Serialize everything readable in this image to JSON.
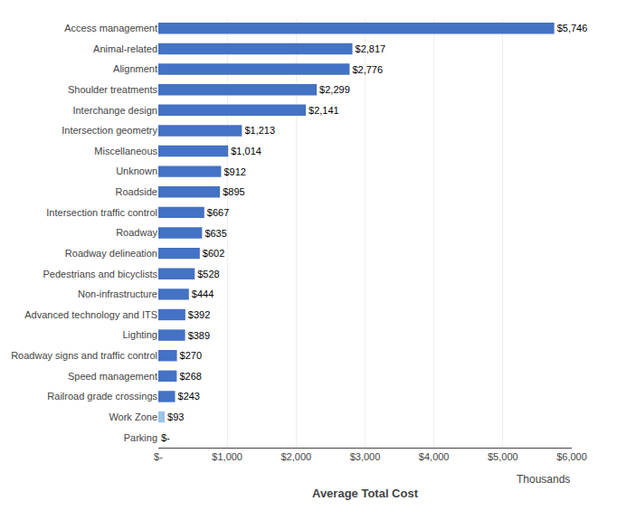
{
  "chart_data": {
    "type": "bar",
    "orientation": "horizontal",
    "categories": [
      "Parking",
      "Work Zone",
      "Railroad grade crossings",
      "Speed management",
      "Roadway signs and traffic control",
      "Lighting",
      "Advanced technology and ITS",
      "Non-infrastructure",
      "Pedestrians and bicyclists",
      "Roadway delineation",
      "Roadway",
      "Intersection traffic control",
      "Roadside",
      "Unknown",
      "Miscellaneous",
      "Intersection geometry",
      "Interchange design",
      "Shoulder treatments",
      "Alignment",
      "Animal-related",
      "Access management"
    ],
    "values": [
      0,
      93,
      243,
      268,
      270,
      389,
      392,
      444,
      528,
      602,
      635,
      667,
      895,
      912,
      1014,
      1213,
      2141,
      2299,
      2776,
      2817,
      5746
    ],
    "value_labels": [
      "$-",
      "$93",
      "$243",
      "$268",
      "$270",
      "$389",
      "$392",
      "$444",
      "$528",
      "$602",
      "$635",
      "$667",
      "$895",
      "$912",
      "$1,014",
      "$1,213",
      "$2,141",
      "$2,299",
      "$2,776",
      "$2,817",
      "$5,746"
    ],
    "colors": [
      "#4472C4",
      "#9DC3E6",
      "#4472C4",
      "#4472C4",
      "#4472C4",
      "#4472C4",
      "#4472C4",
      "#4472C4",
      "#4472C4",
      "#4472C4",
      "#4472C4",
      "#4472C4",
      "#4472C4",
      "#4472C4",
      "#4472C4",
      "#4472C4",
      "#4472C4",
      "#4472C4",
      "#4472C4",
      "#4472C4",
      "#4472C4"
    ],
    "xlabel": "Average Total Cost",
    "annotations": [
      "Thousands"
    ],
    "xlim": [
      0,
      6000
    ],
    "xticks": [
      {
        "value": 0,
        "label": "$-"
      },
      {
        "value": 1000,
        "label": "$1,000"
      },
      {
        "value": 2000,
        "label": "$2,000"
      },
      {
        "value": 3000,
        "label": "$3,000"
      },
      {
        "value": 4000,
        "label": "$4,000"
      },
      {
        "value": 5000,
        "label": "$5,000"
      },
      {
        "value": 6000,
        "label": "$6,000"
      }
    ],
    "grid": true,
    "data_labels": true
  }
}
